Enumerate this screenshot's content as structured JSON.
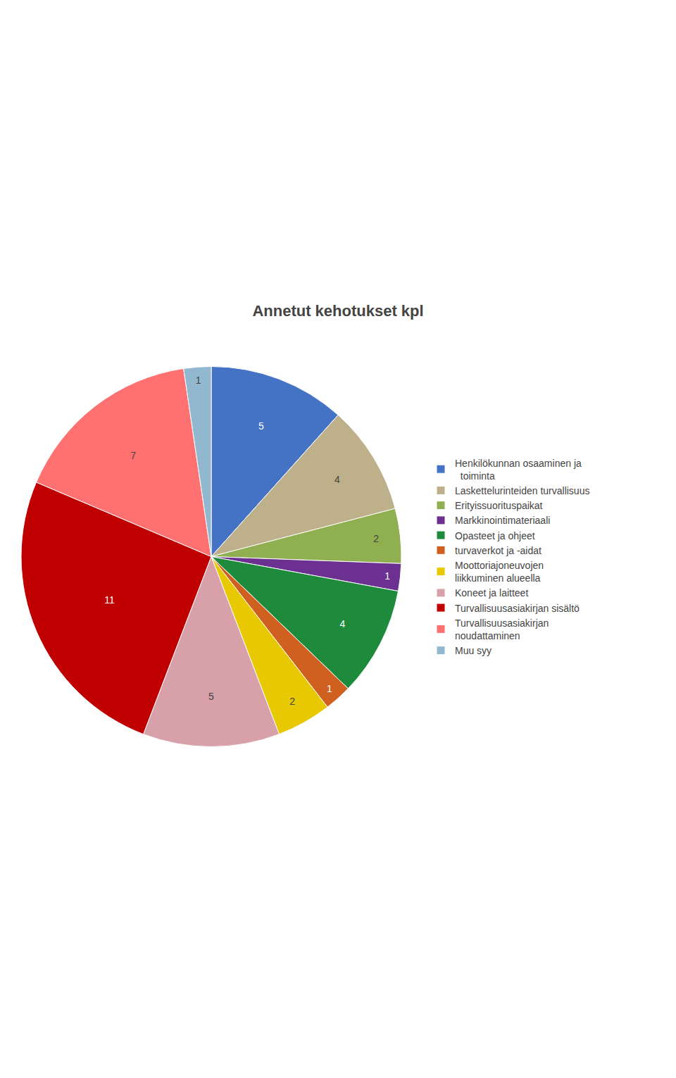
{
  "chart_data": {
    "type": "pie",
    "title": "Annetut kehotukset kpl",
    "categories": [
      "Henkilökunnan osaaminen ja\n  toiminta",
      "Laskettelurinteiden turvallisuus",
      "Erityissuorituspaikat",
      "Markkinointimateriaali",
      "Opasteet ja ohjeet",
      "turvaverkot ja -aidat",
      "Moottoriajoneuvojen\nliikkuminen alueella",
      "Koneet ja laitteet",
      "Turvallisuusasiakirjan sisältö",
      "Turvallisuusasiakirjan\nnoudattaminen",
      "Muu syy"
    ],
    "values": [
      5,
      4,
      2,
      1,
      4,
      1,
      2,
      5,
      11,
      7,
      1
    ],
    "colors": [
      "#4472C4",
      "#BDB08A",
      "#8FAF50",
      "#6B3090",
      "#1E8B3C",
      "#D06020",
      "#E8C800",
      "#D8A0A8",
      "#C00000",
      "#FF7070",
      "#92B8D0"
    ],
    "data_labels": true,
    "legend": "right"
  }
}
